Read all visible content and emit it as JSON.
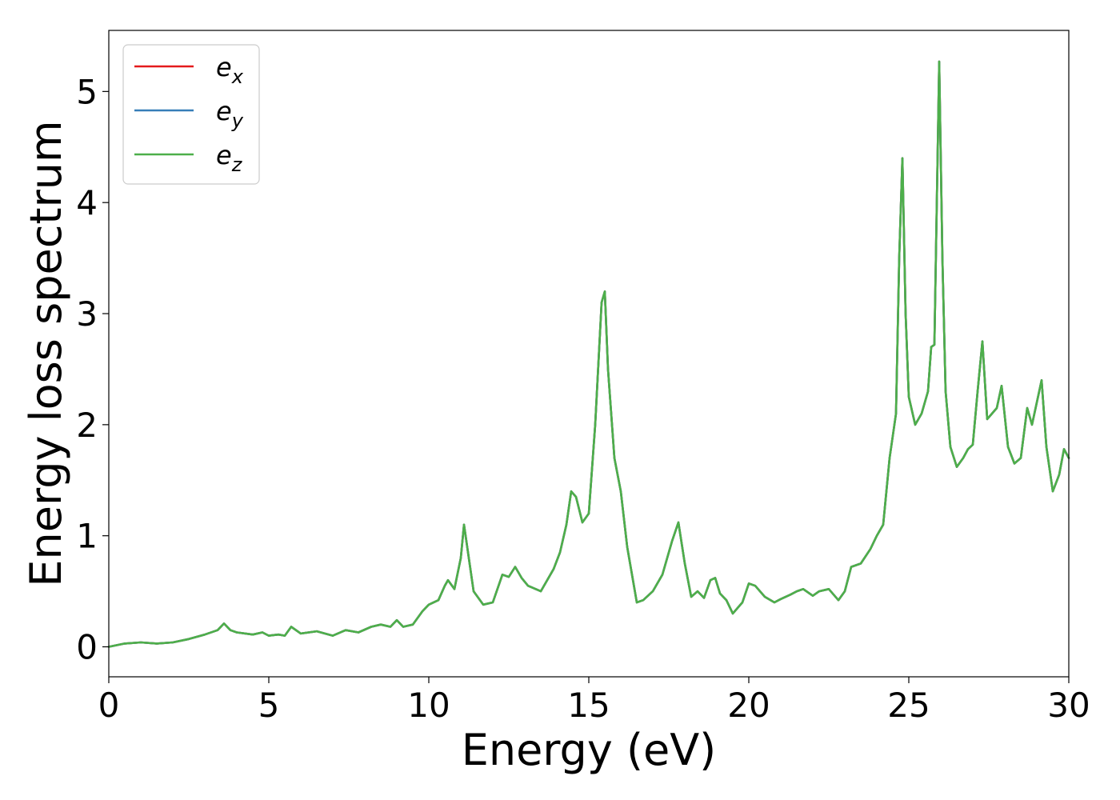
{
  "chart_data": {
    "type": "line",
    "xlabel": "Energy (eV)",
    "ylabel": "Energy loss spectrum",
    "xlim": [
      0,
      30
    ],
    "ylim": [
      -0.27,
      5.55
    ],
    "xticks": [
      0,
      5,
      10,
      15,
      20,
      25,
      30
    ],
    "yticks": [
      0,
      1,
      2,
      3,
      4,
      5
    ],
    "grid": false,
    "legend_position": "top-left",
    "series": [
      {
        "name": "e",
        "subscript": "x",
        "color": "#e41a1c"
      },
      {
        "name": "e",
        "subscript": "y",
        "color": "#377eb8"
      },
      {
        "name": "e",
        "subscript": "z",
        "color": "#4daf4a"
      }
    ],
    "x": [
      0,
      0.5,
      1,
      1.5,
      2,
      2.5,
      3,
      3.4,
      3.6,
      3.8,
      4,
      4.5,
      4.8,
      5,
      5.3,
      5.5,
      5.7,
      6,
      6.5,
      7,
      7.4,
      7.8,
      8.2,
      8.5,
      8.8,
      9,
      9.2,
      9.5,
      9.8,
      10,
      10.3,
      10.5,
      10.6,
      10.8,
      11,
      11.1,
      11.2,
      11.4,
      11.7,
      12,
      12.3,
      12.5,
      12.7,
      12.9,
      13.1,
      13.5,
      13.9,
      14.1,
      14.3,
      14.45,
      14.6,
      14.8,
      15,
      15.2,
      15.4,
      15.5,
      15.6,
      15.8,
      16,
      16.2,
      16.5,
      16.7,
      17,
      17.3,
      17.6,
      17.8,
      18,
      18.2,
      18.4,
      18.6,
      18.8,
      18.95,
      19.1,
      19.3,
      19.5,
      19.8,
      20,
      20.2,
      20.5,
      20.8,
      21,
      21.3,
      21.5,
      21.7,
      22,
      22.2,
      22.5,
      22.8,
      23,
      23.2,
      23.5,
      23.8,
      24,
      24.2,
      24.4,
      24.6,
      24.7,
      24.8,
      24.9,
      25,
      25.2,
      25.4,
      25.6,
      25.7,
      25.8,
      25.95,
      26.05,
      26.15,
      26.3,
      26.5,
      26.7,
      26.85,
      27,
      27.15,
      27.3,
      27.45,
      27.6,
      27.75,
      27.9,
      28.1,
      28.3,
      28.5,
      28.7,
      28.85,
      29,
      29.15,
      29.3,
      29.5,
      29.7,
      29.85,
      30
    ],
    "y": [
      0.0,
      0.03,
      0.04,
      0.03,
      0.04,
      0.07,
      0.11,
      0.15,
      0.21,
      0.15,
      0.13,
      0.11,
      0.13,
      0.1,
      0.11,
      0.1,
      0.18,
      0.12,
      0.14,
      0.1,
      0.15,
      0.13,
      0.18,
      0.2,
      0.18,
      0.24,
      0.18,
      0.2,
      0.32,
      0.38,
      0.42,
      0.55,
      0.6,
      0.52,
      0.8,
      1.1,
      0.9,
      0.5,
      0.38,
      0.4,
      0.65,
      0.63,
      0.72,
      0.62,
      0.55,
      0.5,
      0.7,
      0.85,
      1.1,
      1.4,
      1.35,
      1.12,
      1.2,
      2.0,
      3.1,
      3.2,
      2.5,
      1.7,
      1.4,
      0.9,
      0.4,
      0.42,
      0.5,
      0.65,
      0.95,
      1.12,
      0.75,
      0.45,
      0.5,
      0.44,
      0.6,
      0.62,
      0.48,
      0.42,
      0.3,
      0.4,
      0.57,
      0.55,
      0.45,
      0.4,
      0.43,
      0.47,
      0.5,
      0.52,
      0.46,
      0.5,
      0.52,
      0.42,
      0.5,
      0.72,
      0.75,
      0.88,
      1.0,
      1.1,
      1.7,
      2.1,
      3.5,
      4.4,
      3.0,
      2.25,
      2.0,
      2.1,
      2.3,
      2.7,
      2.72,
      5.27,
      3.5,
      2.3,
      1.8,
      1.62,
      1.7,
      1.78,
      1.82,
      2.3,
      2.75,
      2.05,
      2.1,
      2.15,
      2.35,
      1.8,
      1.65,
      1.7,
      2.15,
      2.0,
      2.2,
      2.4,
      1.8,
      1.4,
      1.55,
      1.78,
      1.7
    ]
  }
}
